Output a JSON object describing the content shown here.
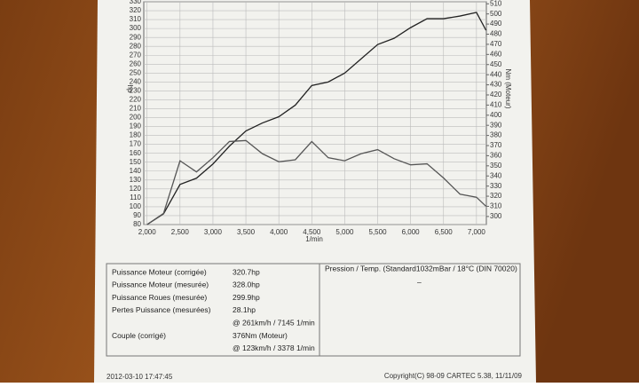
{
  "chart_data": {
    "type": "line",
    "x_label": "1/min",
    "y_label": "hp",
    "y2_label": "Nm (Moteur)",
    "x": [
      2000,
      2250,
      2500,
      2750,
      3000,
      3250,
      3500,
      3750,
      4000,
      4250,
      4500,
      4750,
      5000,
      5250,
      5500,
      5750,
      6000,
      6250,
      6500,
      6750,
      7000,
      7145
    ],
    "series": [
      {
        "name": "hp",
        "color": "#222222",
        "values": [
          80,
          92,
          125,
          132,
          148,
          168,
          185,
          194,
          201,
          214,
          236,
          240,
          250,
          266,
          282,
          289,
          301,
          311,
          311,
          314,
          318,
          298
        ]
      },
      {
        "name": "Nm",
        "color": "#555555",
        "axis": "y2",
        "values": [
          292,
          303,
          355,
          344,
          358,
          374,
          375,
          362,
          354,
          356,
          374,
          358,
          355,
          362,
          366,
          357,
          351,
          352,
          338,
          322,
          319,
          310
        ]
      }
    ],
    "xlim": [
      1950,
      7150
    ],
    "xticks": [
      {
        "value": 2000,
        "label": "2,000"
      },
      {
        "value": 2500,
        "label": "2,500"
      },
      {
        "value": 3000,
        "label": "3,000"
      },
      {
        "value": 3500,
        "label": "3,500"
      },
      {
        "value": 4000,
        "label": "4,000"
      },
      {
        "value": 4500,
        "label": "4,500"
      },
      {
        "value": 5000,
        "label": "5,000"
      },
      {
        "value": 5500,
        "label": "5,500"
      },
      {
        "value": 6000,
        "label": "6,000"
      },
      {
        "value": 6500,
        "label": "6,500"
      },
      {
        "value": 7000,
        "label": "7,000"
      }
    ],
    "ylim": [
      80,
      330
    ],
    "yticks": [
      80,
      90,
      100,
      110,
      120,
      130,
      140,
      150,
      160,
      170,
      180,
      190,
      200,
      210,
      220,
      230,
      240,
      250,
      260,
      270,
      280,
      290,
      300,
      310,
      320,
      330
    ],
    "y2lim": [
      292,
      512
    ],
    "y2ticks": [
      300,
      310,
      320,
      330,
      340,
      350,
      360,
      370,
      380,
      390,
      400,
      410,
      420,
      430,
      440,
      450,
      460,
      470,
      480,
      490,
      500,
      510
    ],
    "grid": true
  },
  "results": {
    "lines": [
      {
        "label": "Puissance Moteur (corrigée)",
        "value": "320.7hp"
      },
      {
        "label": "Puissance Moteur (mesurée)",
        "value": "328.0hp"
      },
      {
        "label": "Puissance Roues (mesurée)",
        "value": "299.9hp"
      },
      {
        "label": "Pertes Puissance (mesurées)",
        "value": "28.1hp"
      },
      {
        "value": "@ 261km/h / 7145 1/min"
      },
      {
        "label": "Couple (corrigé)",
        "value": "376Nm (Moteur)"
      },
      {
        "value": "@ 123km/h / 3378 1/min"
      }
    ]
  },
  "conditions": {
    "text": "Pression / Temp. (Standard1032mBar / 18°C   (DIN 70020)",
    "value": "–"
  },
  "footer": {
    "date": "2012-03-10 17:47:45",
    "copyright": "Copyright(C) 98-09 CARTEC 5.38, 11/11/09"
  }
}
